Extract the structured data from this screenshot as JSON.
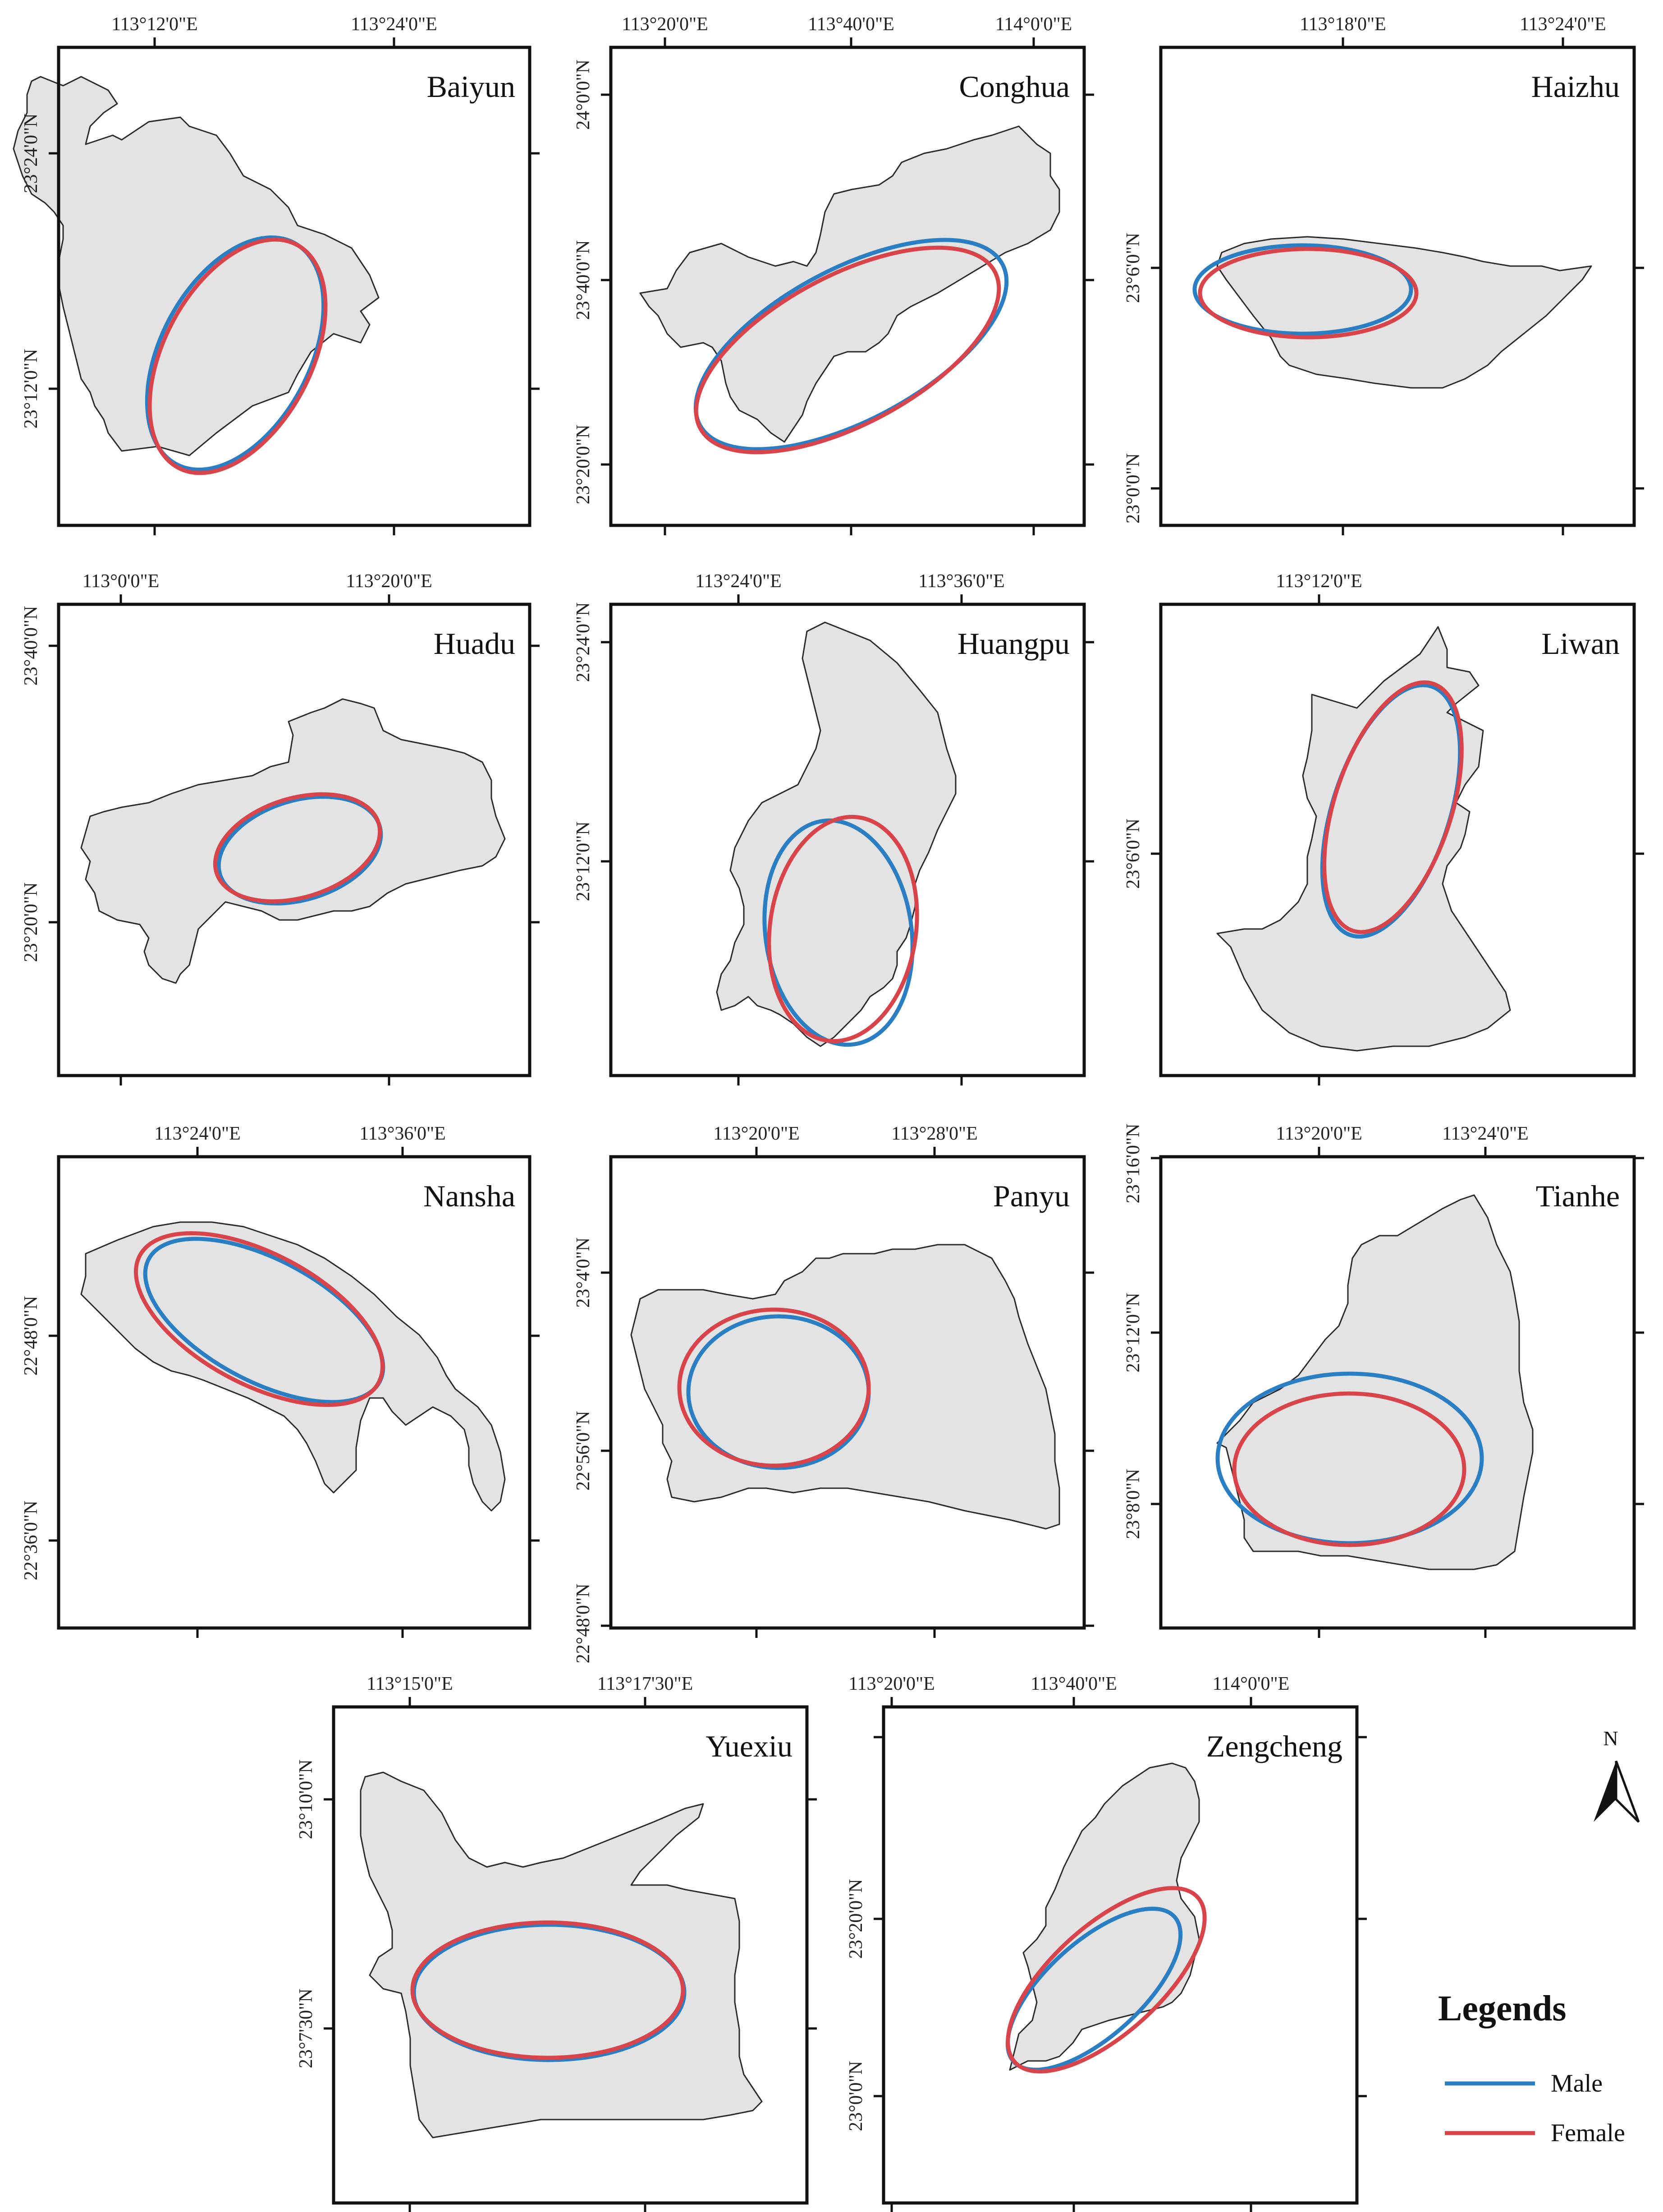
{
  "colors": {
    "male": "#2a7fc4",
    "female": "#d9434a",
    "district_fill": "#e3e3e3",
    "district_stroke": "#2a2a2a"
  },
  "panels": [
    {
      "id": "baiyun",
      "title": "Baiyun",
      "top_labels": [
        "113°12'0\"E",
        "113°24'0\"E"
      ],
      "left_labels": [
        "23°24'0\"N",
        "23°12'0\"N"
      ]
    },
    {
      "id": "conghua",
      "title": "Conghua",
      "top_labels": [
        "113°20'0\"E",
        "113°40'0\"E",
        "114°0'0\"E"
      ],
      "left_labels": [
        "24°0'0\"N",
        "23°40'0\"N",
        "23°20'0\"N"
      ]
    },
    {
      "id": "haizhu",
      "title": "Haizhu",
      "top_labels": [
        "113°18'0\"E",
        "113°24'0\"E"
      ],
      "left_labels": [
        "23°6'0\"N",
        "23°0'0\"N"
      ]
    },
    {
      "id": "huadu",
      "title": "Huadu",
      "top_labels": [
        "113°0'0\"E",
        "113°20'0\"E"
      ],
      "left_labels": [
        "23°40'0\"N",
        "23°20'0\"N"
      ]
    },
    {
      "id": "huangpu",
      "title": "Huangpu",
      "top_labels": [
        "113°24'0\"E",
        "113°36'0\"E"
      ],
      "left_labels": [
        "23°24'0\"N",
        "23°12'0\"N"
      ]
    },
    {
      "id": "liwan",
      "title": "Liwan",
      "top_labels": [
        "113°12'0\"E"
      ],
      "left_labels": [
        "23°6'0\"N"
      ]
    },
    {
      "id": "nansha",
      "title": "Nansha",
      "top_labels": [
        "113°24'0\"E",
        "113°36'0\"E"
      ],
      "left_labels": [
        "22°48'0\"N",
        "22°36'0\"N"
      ]
    },
    {
      "id": "panyu",
      "title": "Panyu",
      "top_labels": [
        "113°20'0\"E",
        "113°28'0\"E"
      ],
      "left_labels": [
        "23°4'0\"N",
        "22°56'0\"N",
        "22°48'0\"N"
      ]
    },
    {
      "id": "tianhe",
      "title": "Tianhe",
      "top_labels": [
        "113°20'0\"E",
        "113°24'0\"E"
      ],
      "left_labels": [
        "23°16'0\"N",
        "23°12'0\"N",
        "23°8'0\"N"
      ]
    },
    {
      "id": "yuexiu",
      "title": "Yuexiu",
      "top_labels": [
        "113°15'0\"E",
        "113°17'30\"E"
      ],
      "left_labels": [
        "23°10'0\"N",
        "23°7'30\"N"
      ]
    },
    {
      "id": "zengcheng",
      "title": "Zengcheng",
      "top_labels": [
        "113°20'0\"E",
        "113°40'0\"E",
        "114°0'0\"E"
      ],
      "left_labels": [
        "23°20'0\"N",
        "23°0'0\"N"
      ]
    }
  ],
  "legend": {
    "title": "Legends",
    "items": [
      "Male",
      "Female"
    ]
  },
  "north_arrow": {
    "label": "N",
    "icon": "north-arrow-icon"
  }
}
